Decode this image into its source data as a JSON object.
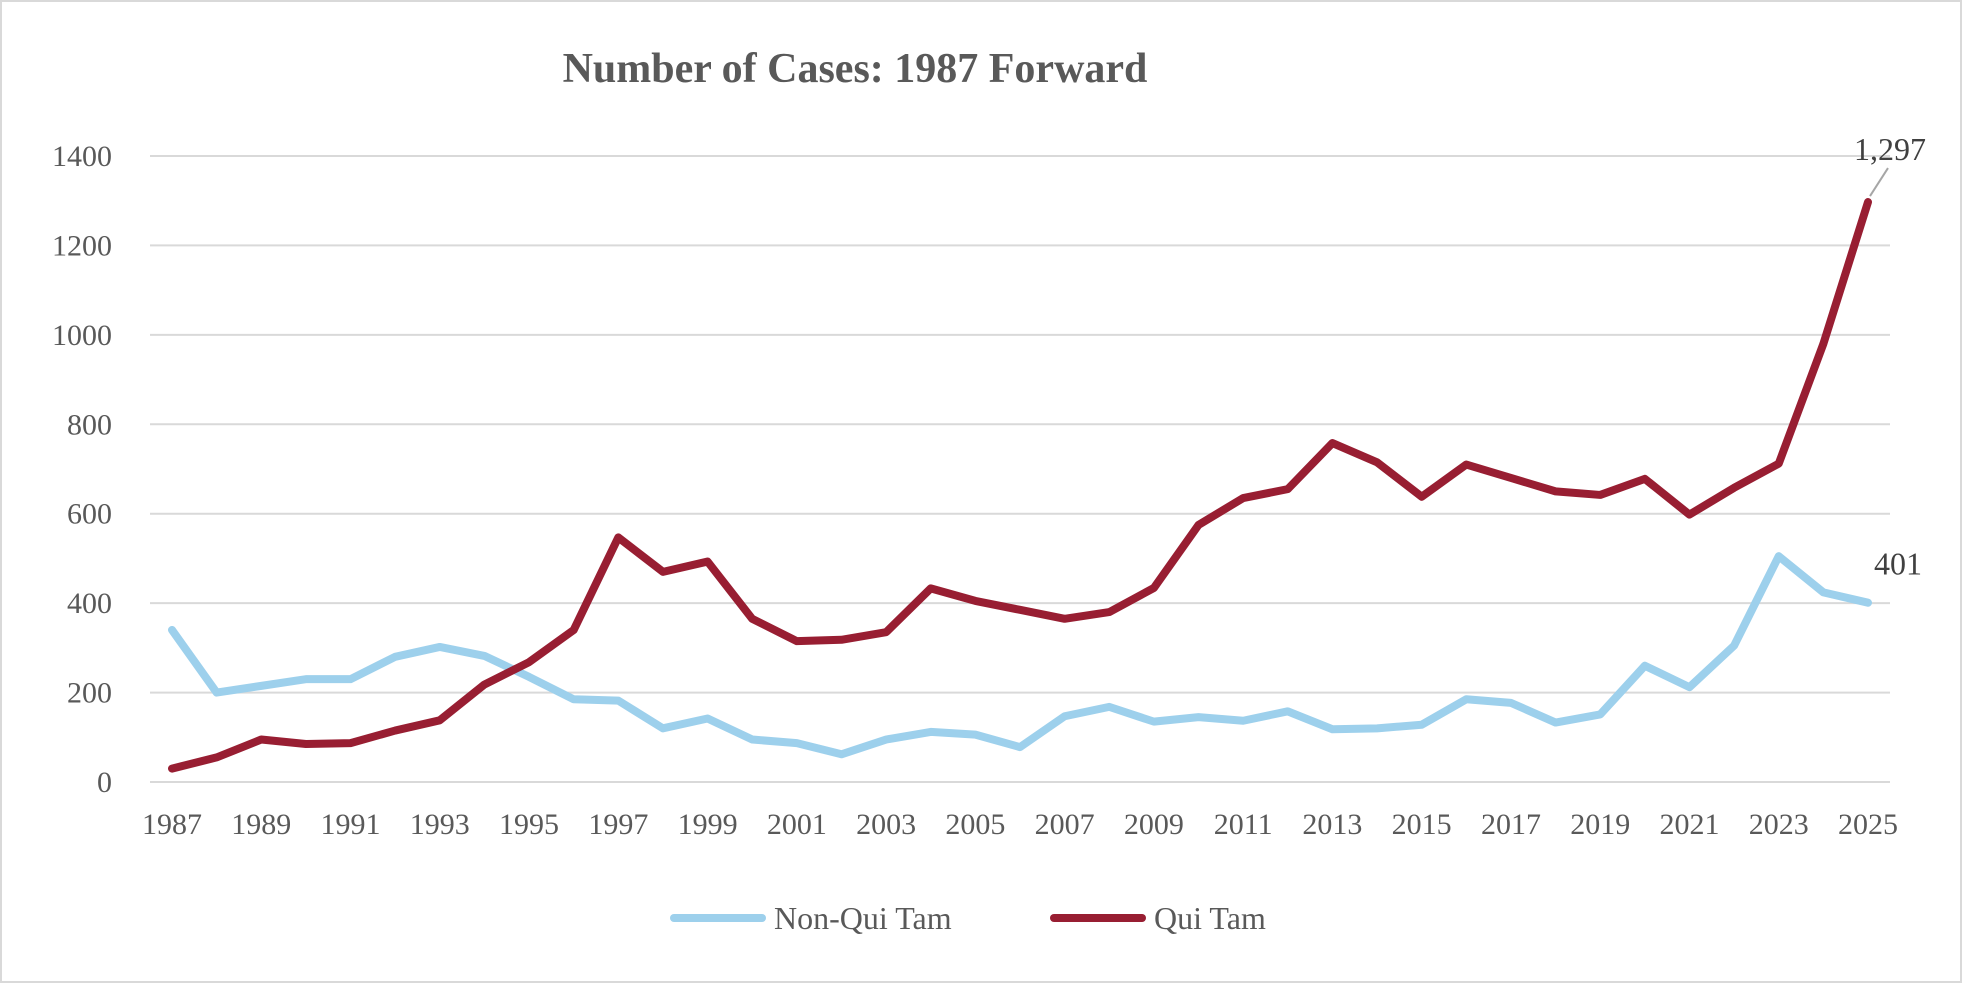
{
  "chart_data": {
    "type": "line",
    "title": "Number of Cases: 1987 Forward",
    "xlabel": "",
    "ylabel": "",
    "ylim": [
      0,
      1400
    ],
    "yticks": [
      0,
      200,
      400,
      600,
      800,
      1000,
      1200,
      1400
    ],
    "grid": true,
    "legend_placement": "bottom",
    "x": [
      1987,
      1988,
      1989,
      1990,
      1991,
      1992,
      1993,
      1994,
      1995,
      1996,
      1997,
      1998,
      1999,
      2000,
      2001,
      2002,
      2003,
      2004,
      2005,
      2006,
      2007,
      2008,
      2009,
      2010,
      2011,
      2012,
      2013,
      2014,
      2015,
      2016,
      2017,
      2018,
      2019,
      2020,
      2021,
      2022,
      2023,
      2024,
      2025
    ],
    "xtick_labels": [
      "1987",
      "1989",
      "1991",
      "1993",
      "1995",
      "1997",
      "1999",
      "2001",
      "2003",
      "2005",
      "2007",
      "2009",
      "2011",
      "2013",
      "2015",
      "2017",
      "2019",
      "2021",
      "2023",
      "2025"
    ],
    "series": [
      {
        "name": "Non-Qui Tam",
        "color": "#9DD0EC",
        "values": [
          340,
          200,
          215,
          230,
          230,
          280,
          302,
          282,
          235,
          185,
          182,
          120,
          142,
          95,
          87,
          62,
          95,
          112,
          106,
          78,
          147,
          168,
          135,
          145,
          137,
          158,
          118,
          120,
          128,
          185,
          177,
          133,
          151,
          260,
          212,
          305,
          505,
          424,
          401
        ]
      },
      {
        "name": "Qui Tam",
        "color": "#981E32",
        "values": [
          30,
          55,
          95,
          85,
          87,
          115,
          138,
          218,
          268,
          340,
          547,
          470,
          493,
          365,
          315,
          318,
          335,
          433,
          405,
          385,
          365,
          380,
          434,
          575,
          635,
          655,
          758,
          715,
          638,
          710,
          680,
          650,
          642,
          678,
          598,
          658,
          712,
          980,
          1297
        ]
      }
    ],
    "annotations": [
      {
        "series": "Qui Tam",
        "x": 2025,
        "text": "1,297"
      },
      {
        "series": "Non-Qui Tam",
        "x": 2025,
        "text": "401"
      }
    ]
  }
}
